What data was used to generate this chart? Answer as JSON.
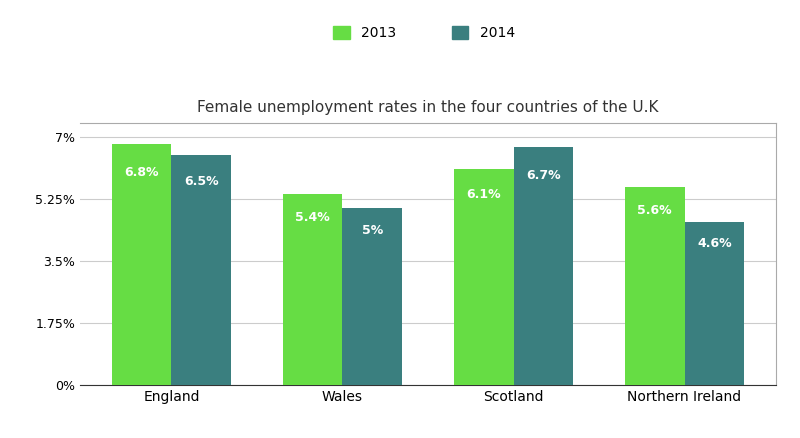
{
  "title": "Female unemployment rates in the four countries of the U.K",
  "categories": [
    "England",
    "Wales",
    "Scotland",
    "Northern Ireland"
  ],
  "values_2013": [
    6.8,
    5.4,
    6.1,
    5.6
  ],
  "values_2014": [
    6.5,
    5.0,
    6.7,
    4.6
  ],
  "labels_2013": [
    "6.8%",
    "5.4%",
    "6.1%",
    "5.6%"
  ],
  "labels_2014": [
    "6.5%",
    "5%",
    "6.7%",
    "4.6%"
  ],
  "color_2013": "#66DD44",
  "color_2014": "#3A7F7F",
  "legend_labels": [
    "2013",
    "2014"
  ],
  "yticks": [
    0,
    1.75,
    3.5,
    5.25,
    7.0
  ],
  "ytick_labels": [
    "0%",
    "1.75%",
    "3.5%",
    "5.25%",
    "7%"
  ],
  "ylim": [
    0,
    7.4
  ],
  "bar_width": 0.35,
  "background_color": "#ffffff",
  "grid_color": "#cccccc",
  "label_fontsize": 9,
  "title_fontsize": 11,
  "legend_fontsize": 10
}
